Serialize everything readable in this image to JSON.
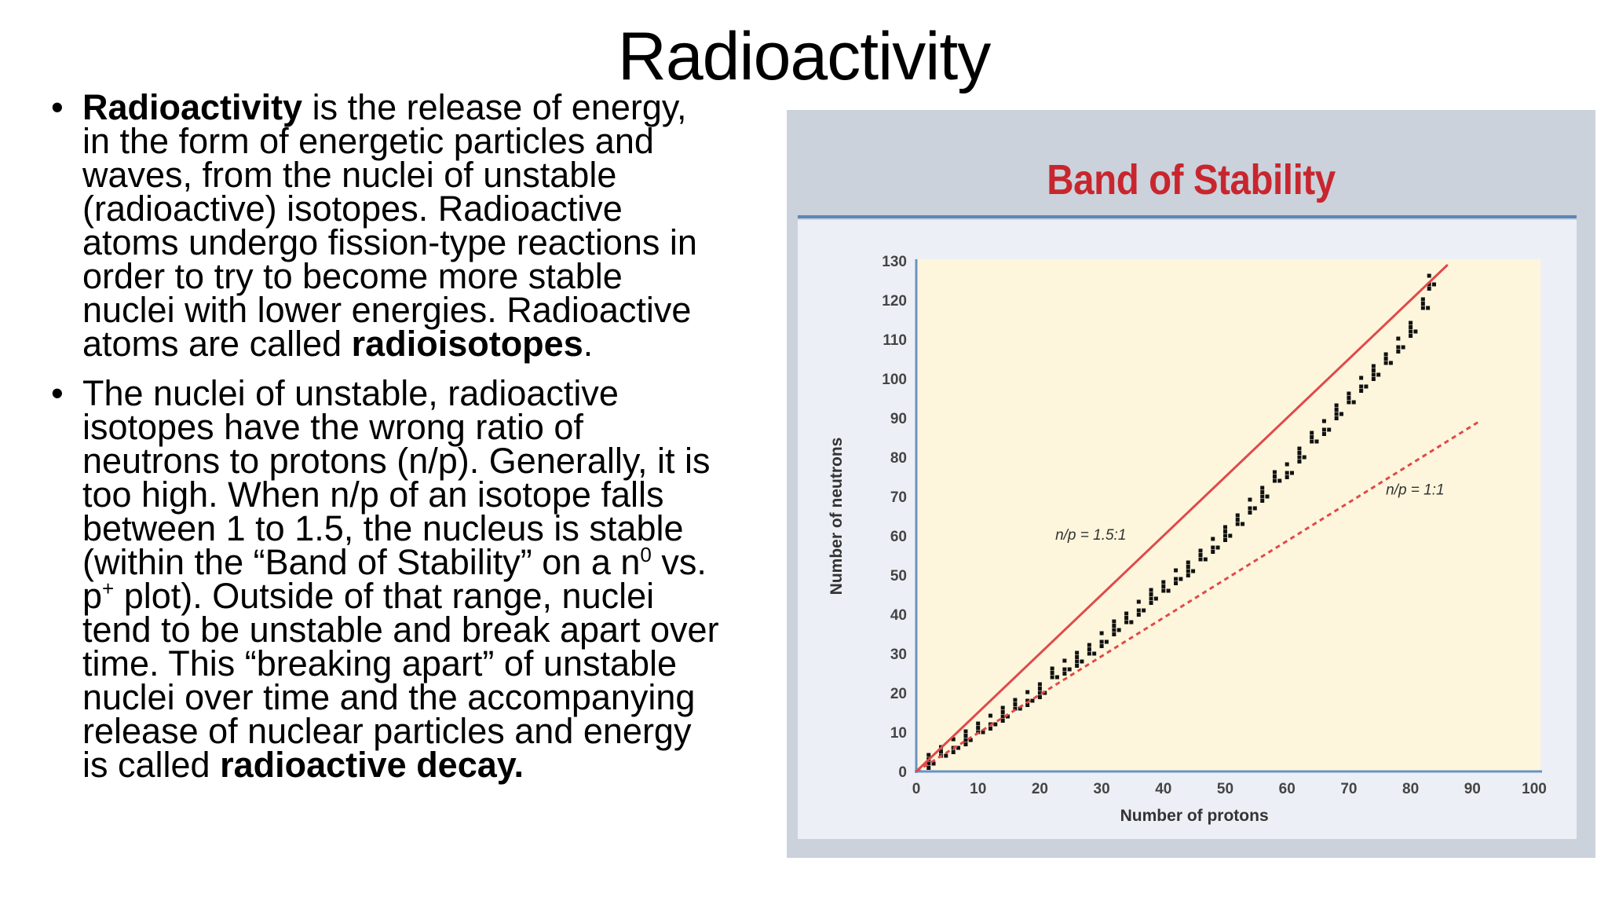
{
  "slide": {
    "title": "Radioactivity",
    "bullet1": {
      "p1_bold": "Radioactivity",
      "p1_text": " is the release of energy, in the form of energetic particles and waves, from the nuclei of unstable (radioactive) isotopes.  Radioactive atoms undergo fission-type reactions in order to try to become more stable nuclei with lower energies.  Radioactive atoms are called ",
      "p1_bold2": "radioisotopes",
      "p1_end": "."
    },
    "bullet2": {
      "t1": "The nuclei of unstable, radioactive isotopes have the wrong ratio of neutrons to protons (n/p).  Generally, it is too high.  When n/p of an isotope falls between 1 to 1.5, the nucleus is stable (within the “Band of Stability” on a n",
      "sup1": "0",
      "t2": " vs. p",
      "sup2": "+",
      "t3": " plot).  Outside of that range, nuclei tend to be unstable and break apart over time.  This “breaking apart” of unstable nuclei over time and the accompanying release of nuclear particles and energy is called ",
      "bold_end": "radioactive decay."
    },
    "bullet_marker": "•"
  },
  "chart_data": {
    "type": "scatter",
    "title": "Band of Stability",
    "xlabel": "Number of protons",
    "ylabel": "Number of neutrons",
    "xlim": [
      0,
      100
    ],
    "ylim": [
      0,
      130
    ],
    "xticks": [
      0,
      10,
      20,
      30,
      40,
      50,
      60,
      70,
      80,
      90,
      100
    ],
    "yticks": [
      0,
      10,
      20,
      30,
      40,
      50,
      60,
      70,
      80,
      90,
      100,
      110,
      120,
      130
    ],
    "lines": [
      {
        "label": "n/p = 1.5:1",
        "x": [
          0,
          86
        ],
        "y": [
          0,
          129
        ],
        "style": "solid",
        "color": "#e04a4a"
      },
      {
        "label": "n/p = 1:1",
        "x": [
          0,
          91
        ],
        "y": [
          0,
          89
        ],
        "style": "dashed",
        "color": "#e04a4a"
      }
    ],
    "stable_band": {
      "description_points": [
        [
          2,
          2
        ],
        [
          4,
          4
        ],
        [
          6,
          6
        ],
        [
          8,
          8
        ],
        [
          10,
          10
        ],
        [
          12,
          12
        ],
        [
          14,
          14
        ],
        [
          16,
          16
        ],
        [
          18,
          18
        ],
        [
          20,
          20
        ],
        [
          22,
          24
        ],
        [
          24,
          26
        ],
        [
          26,
          28
        ],
        [
          28,
          30
        ],
        [
          30,
          33
        ],
        [
          32,
          36
        ],
        [
          34,
          38
        ],
        [
          36,
          41
        ],
        [
          38,
          44
        ],
        [
          40,
          46
        ],
        [
          42,
          49
        ],
        [
          44,
          51
        ],
        [
          46,
          54
        ],
        [
          48,
          57
        ],
        [
          50,
          60
        ],
        [
          52,
          63
        ],
        [
          54,
          67
        ],
        [
          56,
          70
        ],
        [
          58,
          74
        ],
        [
          60,
          76
        ],
        [
          62,
          80
        ],
        [
          64,
          84
        ],
        [
          66,
          87
        ],
        [
          68,
          91
        ],
        [
          70,
          94
        ],
        [
          72,
          98
        ],
        [
          74,
          101
        ],
        [
          76,
          104
        ],
        [
          78,
          108
        ],
        [
          80,
          112
        ],
        [
          82,
          118
        ],
        [
          83,
          124
        ]
      ],
      "color": "#111111"
    },
    "plot_background": "#fdf6dc",
    "grid": false
  }
}
